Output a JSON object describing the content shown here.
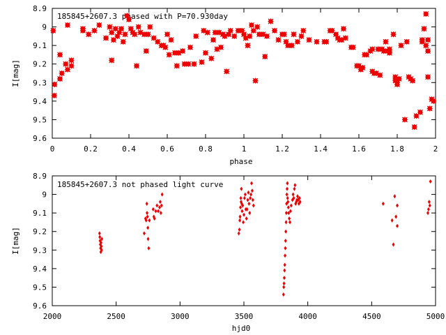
{
  "chart_data": [
    {
      "type": "scatter",
      "title": "185845+2607.3 phased with P=70.930day",
      "xlabel": "phase",
      "ylabel": "I[mag]",
      "xlim": [
        0,
        2
      ],
      "ylim": [
        9.6,
        8.9
      ],
      "y_inverted": true,
      "grid": false,
      "marker": "star",
      "color": "#ee0000",
      "x_ticks": [
        0,
        0.2,
        0.4,
        0.6,
        0.8,
        1,
        1.2,
        1.4,
        1.6,
        1.8,
        2
      ],
      "x_tick_labels": [
        "0",
        "0.2",
        "0.4",
        "0.6",
        "0.8",
        "1",
        "1.2",
        "1.4",
        "1.6",
        "1.8",
        "2"
      ],
      "y_ticks": [
        8.9,
        9.0,
        9.1,
        9.2,
        9.3,
        9.4,
        9.5,
        9.6
      ],
      "y_tick_labels": [
        "8.9",
        "9",
        "9.1",
        "9.2",
        "9.3",
        "9.4",
        "9.5",
        "9.6"
      ],
      "points": [
        [
          0.005,
          9.02
        ],
        [
          0.012,
          9.31
        ],
        [
          0.01,
          9.37
        ],
        [
          0.04,
          9.28
        ],
        [
          0.04,
          9.15
        ],
        [
          0.05,
          9.25
        ],
        [
          0.07,
          9.2
        ],
        [
          0.08,
          9.23
        ],
        [
          0.08,
          8.99
        ],
        [
          0.1,
          9.21
        ],
        [
          0.1,
          9.18
        ],
        [
          0.16,
          9.01
        ],
        [
          0.16,
          9.02
        ],
        [
          0.19,
          9.04
        ],
        [
          0.22,
          9.02
        ],
        [
          0.245,
          8.99
        ],
        [
          0.28,
          9.06
        ],
        [
          0.3,
          9.0
        ],
        [
          0.31,
          9.03
        ],
        [
          0.31,
          9.18
        ],
        [
          0.32,
          9.07
        ],
        [
          0.33,
          9.01
        ],
        [
          0.34,
          9.05
        ],
        [
          0.35,
          9.03
        ],
        [
          0.36,
          9.01
        ],
        [
          0.37,
          9.08
        ],
        [
          0.38,
          9.04
        ],
        [
          0.39,
          8.94
        ],
        [
          0.4,
          8.96
        ],
        [
          0.41,
          9.01
        ],
        [
          0.42,
          9.03
        ],
        [
          0.43,
          9.04
        ],
        [
          0.44,
          9.21
        ],
        [
          0.45,
          9.0
        ],
        [
          0.46,
          9.03
        ],
        [
          0.48,
          9.04
        ],
        [
          0.49,
          9.13
        ],
        [
          0.5,
          9.04
        ],
        [
          0.51,
          9.0
        ],
        [
          0.53,
          9.06
        ],
        [
          0.55,
          9.08
        ],
        [
          0.57,
          9.1
        ],
        [
          0.58,
          9.1
        ],
        [
          0.59,
          9.11
        ],
        [
          0.6,
          9.04
        ],
        [
          0.61,
          9.15
        ],
        [
          0.62,
          9.07
        ],
        [
          0.64,
          9.14
        ],
        [
          0.65,
          9.21
        ],
        [
          0.66,
          9.14
        ],
        [
          0.68,
          9.13
        ],
        [
          0.69,
          9.2
        ],
        [
          0.71,
          9.2
        ],
        [
          0.72,
          9.11
        ],
        [
          0.74,
          9.2
        ],
        [
          0.75,
          9.05
        ],
        [
          0.78,
          9.19
        ],
        [
          0.79,
          9.02
        ],
        [
          0.8,
          9.14
        ],
        [
          0.81,
          9.03
        ],
        [
          0.83,
          9.17
        ],
        [
          0.84,
          9.07
        ],
        [
          0.85,
          9.03
        ],
        [
          0.86,
          9.12
        ],
        [
          0.87,
          9.03
        ],
        [
          0.88,
          9.11
        ],
        [
          0.89,
          9.04
        ],
        [
          0.9,
          9.05
        ],
        [
          0.91,
          9.24
        ],
        [
          0.92,
          9.04
        ],
        [
          0.93,
          9.02
        ],
        [
          0.95,
          9.05
        ],
        [
          0.97,
          9.02
        ],
        [
          0.99,
          9.02
        ],
        [
          1.0,
          9.04
        ],
        [
          1.01,
          9.06
        ],
        [
          1.02,
          9.1
        ],
        [
          1.03,
          9.05
        ],
        [
          1.04,
          8.99
        ],
        [
          1.05,
          9.02
        ],
        [
          1.06,
          9.29
        ],
        [
          1.07,
          9.0
        ],
        [
          1.08,
          9.04
        ],
        [
          1.1,
          9.04
        ],
        [
          1.11,
          9.16
        ],
        [
          1.12,
          9.05
        ],
        [
          1.14,
          8.97
        ],
        [
          1.16,
          9.02
        ],
        [
          1.18,
          9.07
        ],
        [
          1.2,
          9.04
        ],
        [
          1.21,
          9.04
        ],
        [
          1.22,
          9.08
        ],
        [
          1.23,
          9.1
        ],
        [
          1.25,
          9.1
        ],
        [
          1.26,
          9.04
        ],
        [
          1.28,
          9.08
        ],
        [
          1.3,
          9.05
        ],
        [
          1.31,
          9.02
        ],
        [
          1.34,
          9.07
        ],
        [
          1.38,
          9.08
        ],
        [
          1.42,
          9.08
        ],
        [
          1.43,
          9.08
        ],
        [
          1.45,
          9.02
        ],
        [
          1.46,
          9.02
        ],
        [
          1.48,
          9.04
        ],
        [
          1.49,
          9.06
        ],
        [
          1.5,
          9.07
        ],
        [
          1.51,
          9.07
        ],
        [
          1.52,
          9.01
        ],
        [
          1.53,
          9.06
        ],
        [
          1.56,
          9.11
        ],
        [
          1.57,
          9.11
        ],
        [
          1.59,
          9.21
        ],
        [
          1.6,
          9.21
        ],
        [
          1.61,
          9.23
        ],
        [
          1.62,
          9.22
        ],
        [
          1.63,
          9.15
        ],
        [
          1.64,
          9.15
        ],
        [
          1.66,
          9.13
        ],
        [
          1.67,
          9.24
        ],
        [
          1.67,
          9.12
        ],
        [
          1.68,
          9.25
        ],
        [
          1.69,
          9.25
        ],
        [
          1.7,
          9.12
        ],
        [
          1.71,
          9.26
        ],
        [
          1.72,
          9.12
        ],
        [
          1.73,
          9.13
        ],
        [
          1.74,
          9.08
        ],
        [
          1.75,
          9.13
        ],
        [
          1.76,
          9.12
        ],
        [
          1.76,
          9.14
        ],
        [
          1.78,
          9.04
        ],
        [
          1.79,
          9.27
        ],
        [
          1.79,
          9.29
        ],
        [
          1.8,
          9.31
        ],
        [
          1.8,
          9.3
        ],
        [
          1.81,
          9.28
        ],
        [
          1.82,
          9.1
        ],
        [
          1.84,
          9.5
        ],
        [
          1.85,
          9.08
        ],
        [
          1.86,
          9.27
        ],
        [
          1.87,
          9.28
        ],
        [
          1.88,
          9.29
        ],
        [
          1.89,
          9.54
        ],
        [
          1.9,
          9.48
        ],
        [
          1.92,
          9.46
        ],
        [
          1.93,
          9.08
        ],
        [
          1.93,
          9.07
        ],
        [
          1.94,
          9.01
        ],
        [
          1.95,
          8.93
        ],
        [
          1.95,
          9.1
        ],
        [
          1.96,
          9.27
        ],
        [
          1.96,
          9.13
        ],
        [
          1.97,
          9.44
        ],
        [
          1.98,
          9.39
        ],
        [
          1.99,
          9.4
        ],
        [
          1.96,
          9.07
        ]
      ]
    },
    {
      "type": "scatter",
      "title": "185845+2607.3 not phased light curve",
      "xlabel": "hjd0",
      "ylabel": "I[mag]",
      "xlim": [
        2000,
        5000
      ],
      "ylim": [
        9.6,
        8.9
      ],
      "y_inverted": true,
      "grid": false,
      "marker": "diamond",
      "color": "#ee0000",
      "x_ticks": [
        2000,
        2500,
        3000,
        3500,
        4000,
        4500,
        5000
      ],
      "x_tick_labels": [
        "2000",
        "2500",
        "3000",
        "3500",
        "4000",
        "4500",
        "5000"
      ],
      "y_ticks": [
        8.9,
        9.0,
        9.1,
        9.2,
        9.3,
        9.4,
        9.5,
        9.6
      ],
      "y_tick_labels": [
        "8.9",
        "9",
        "9.1",
        "9.2",
        "9.3",
        "9.4",
        "9.5",
        "9.6"
      ],
      "points": [
        [
          2370,
          9.21
        ],
        [
          2372,
          9.23
        ],
        [
          2374,
          9.25
        ],
        [
          2376,
          9.27
        ],
        [
          2378,
          9.29
        ],
        [
          2380,
          9.31
        ],
        [
          2382,
          9.26
        ],
        [
          2384,
          9.28
        ],
        [
          2386,
          9.3
        ],
        [
          2388,
          9.24
        ],
        [
          2720,
          9.21
        ],
        [
          2730,
          9.13
        ],
        [
          2735,
          9.14
        ],
        [
          2740,
          9.05
        ],
        [
          2742,
          9.1
        ],
        [
          2745,
          9.12
        ],
        [
          2748,
          9.18
        ],
        [
          2750,
          9.24
        ],
        [
          2755,
          9.29
        ],
        [
          2760,
          9.14
        ],
        [
          2790,
          9.08
        ],
        [
          2795,
          9.12
        ],
        [
          2800,
          9.13
        ],
        [
          2810,
          9.09
        ],
        [
          2820,
          9.06
        ],
        [
          2830,
          9.09
        ],
        [
          2840,
          9.07
        ],
        [
          2845,
          9.04
        ],
        [
          2850,
          9.1
        ],
        [
          2855,
          9.06
        ],
        [
          2860,
          9.0
        ],
        [
          3460,
          9.21
        ],
        [
          3465,
          9.19
        ],
        [
          3468,
          9.14
        ],
        [
          3470,
          9.12
        ],
        [
          3473,
          9.07
        ],
        [
          3476,
          9.02
        ],
        [
          3478,
          9.04
        ],
        [
          3480,
          8.97
        ],
        [
          3483,
          9.05
        ],
        [
          3486,
          9.09
        ],
        [
          3490,
          9.06
        ],
        [
          3495,
          9.15
        ],
        [
          3500,
          9.11
        ],
        [
          3505,
          9.02
        ],
        [
          3510,
          9.0
        ],
        [
          3515,
          9.08
        ],
        [
          3520,
          9.13
        ],
        [
          3525,
          9.08
        ],
        [
          3530,
          9.03
        ],
        [
          3535,
          8.99
        ],
        [
          3540,
          9.05
        ],
        [
          3545,
          9.1
        ],
        [
          3550,
          9.02
        ],
        [
          3555,
          9.0
        ],
        [
          3560,
          8.94
        ],
        [
          3565,
          8.98
        ],
        [
          3570,
          9.03
        ],
        [
          3575,
          9.06
        ],
        [
          3810,
          9.54
        ],
        [
          3812,
          9.5
        ],
        [
          3814,
          9.48
        ],
        [
          3816,
          9.45
        ],
        [
          3818,
          9.41
        ],
        [
          3820,
          9.38
        ],
        [
          3822,
          9.33
        ],
        [
          3824,
          9.29
        ],
        [
          3826,
          9.25
        ],
        [
          3828,
          9.2
        ],
        [
          3830,
          9.15
        ],
        [
          3832,
          9.1
        ],
        [
          3834,
          9.05
        ],
        [
          3836,
          9.0
        ],
        [
          3838,
          8.97
        ],
        [
          3840,
          8.94
        ],
        [
          3842,
          9.02
        ],
        [
          3845,
          9.04
        ],
        [
          3848,
          9.07
        ],
        [
          3850,
          9.1
        ],
        [
          3855,
          9.13
        ],
        [
          3860,
          9.15
        ],
        [
          3865,
          9.09
        ],
        [
          3870,
          9.06
        ],
        [
          3880,
          9.03
        ],
        [
          3885,
          9.0
        ],
        [
          3890,
          9.02
        ],
        [
          3895,
          8.97
        ],
        [
          3900,
          8.95
        ],
        [
          3905,
          9.05
        ],
        [
          3910,
          9.04
        ],
        [
          3915,
          9.03
        ],
        [
          3920,
          9.01
        ],
        [
          3925,
          9.03
        ],
        [
          3930,
          9.05
        ],
        [
          3935,
          9.02
        ],
        [
          3940,
          9.04
        ],
        [
          4590,
          9.05
        ],
        [
          4660,
          9.14
        ],
        [
          4670,
          9.27
        ],
        [
          4680,
          9.01
        ],
        [
          4690,
          9.12
        ],
        [
          4700,
          9.17
        ],
        [
          4700,
          9.06
        ],
        [
          4940,
          9.1
        ],
        [
          4945,
          9.08
        ],
        [
          4950,
          9.04
        ],
        [
          4955,
          9.06
        ],
        [
          4960,
          8.93
        ]
      ]
    }
  ]
}
